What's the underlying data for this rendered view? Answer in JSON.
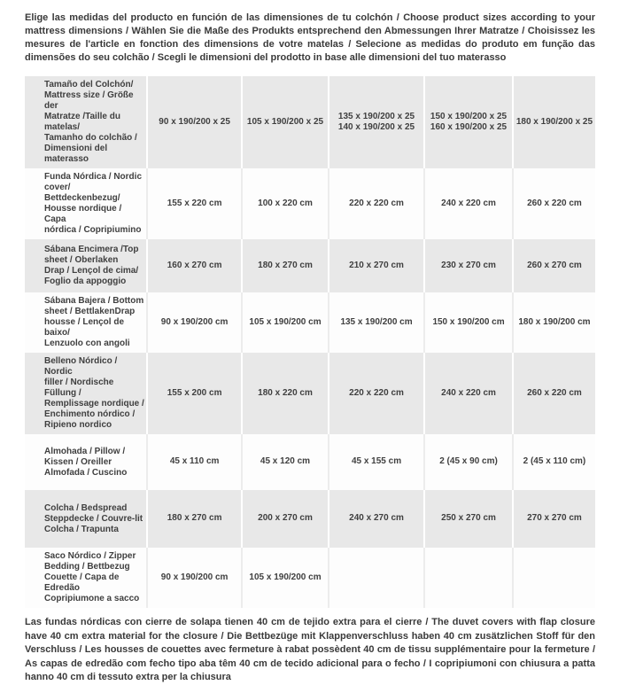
{
  "colors": {
    "row_alt_gray": "#e8e8e8",
    "row_white": "#fdfdfd",
    "text": "#3a3a3a",
    "page_background": "#ffffff"
  },
  "header": {
    "text": "Elige las medidas del producto en función de las dimensiones de tu colchón / Choose product sizes according to your mattress dimensions / Wählen Sie die Maße des Produkts entsprechend den Abmessungen Ihrer Matratze / Choisissez les mesures de l'article en fonction des dimensions de votre matelas / Selecione as medidas do produto em função das dimensões do seu colchão / Scegli le dimensioni del prodotto in base alle dimensioni del tuo materasso"
  },
  "table": {
    "rows": [
      {
        "label": "Tamaño del Colchón/\nMattress size / Größe der\nMatratze /Taille du matelas/\nTamanho do colchão /\nDimensioni del materasso",
        "values": [
          "90 x 190/200 x 25",
          "105 x 190/200 x 25",
          "135 x 190/200 x 25\n140 x 190/200 x 25",
          "150 x 190/200 x 25\n160 x 190/200 x 25",
          "180 x 190/200 x 25"
        ]
      },
      {
        "label": "Funda Nórdica /  Nordic\ncover/ Bettdeckenbezug/\nHousse nordique  / Capa\nnórdica / Copripiumino",
        "values": [
          "155 x 220 cm",
          "100 x 220 cm",
          "220 x 220 cm",
          "240 x 220 cm",
          "260 x 220 cm"
        ]
      },
      {
        "label": "Sábana Encimera /Top\nsheet / Oberlaken\nDrap / Lençol de cima/\nFoglio da appoggio",
        "values": [
          "160 x 270 cm",
          "180 x 270 cm",
          "210 x 270 cm",
          "230 x 270 cm",
          "260 x 270 cm"
        ]
      },
      {
        "label": "Sábana Bajera / Bottom\nsheet / BettlakenDrap\nhousse / Lençol de baixo/\nLenzuolo con angoli",
        "values": [
          "90 x 190/200 cm",
          "105 x 190/200 cm",
          "135 x 190/200 cm",
          "150 x 190/200 cm",
          "180 x 190/200 cm"
        ]
      },
      {
        "label": "Belleno Nórdico / Nordic\nfiller / Nordische Füllung /\nRemplissage nordique /\nEnchimento nórdico /\nRipieno nordico",
        "values": [
          "155 x 200 cm",
          "180 x 220 cm",
          "220 x 220 cm",
          "240 x 220 cm",
          "260 x 220 cm"
        ]
      },
      {
        "label": "Almohada  / Pillow /\nKissen / Oreiller\nAlmofada / Cuscino",
        "values": [
          "45 x 110 cm",
          "45 x 120 cm",
          "45 x 155 cm",
          "2 (45 x 90 cm)",
          "2 (45 x 110 cm)"
        ]
      },
      {
        "label": "Colcha / Bedspread\nSteppdecke / Couvre-lit\nColcha / Trapunta",
        "values": [
          "180 x 270 cm",
          "200 x 270 cm",
          "240 x 270 cm",
          "250 x 270 cm",
          "270 x 270 cm"
        ]
      },
      {
        "label": "Saco Nórdico / Zipper\nBedding / Bettbezug\nCouette  / Capa de Edredão\nCopripiumone a sacco",
        "values": [
          "90 x 190/200 cm",
          "105 x 190/200 cm",
          "",
          "",
          ""
        ]
      }
    ]
  },
  "footer": {
    "text": "Las fundas nórdicas con cierre de solapa tienen 40 cm de tejido extra para el cierre  / The duvet covers with flap closure have 40 cm extra material for the closure / Die Bettbezüge mit Klappenverschluss haben 40 cm zusätzlichen Stoff für den Verschluss / Les housses de couettes avec fermeture à rabat possèdent 40 cm de tissu supplémentaire pour la fermeture / As capas de edredão com fecho tipo aba têm 40 cm de tecido adicional para o fecho / I copripiumoni con chiusura a patta hanno 40 cm di tessuto extra per la chiusura"
  }
}
